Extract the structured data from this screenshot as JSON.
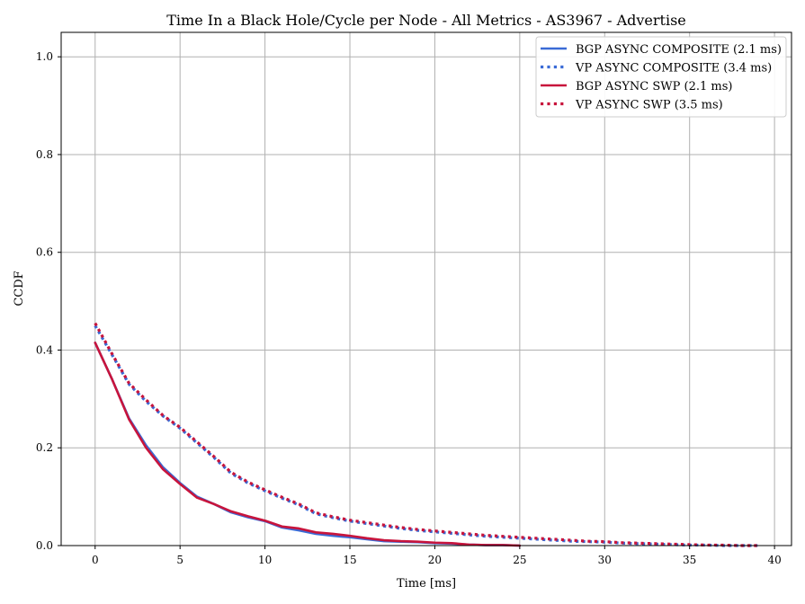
{
  "chart_data": {
    "type": "line",
    "title": "Time In a Black Hole/Cycle per Node - All Metrics - AS3967 - Advertise",
    "xlabel": "Time [ms]",
    "ylabel": "CCDF",
    "xlim": [
      -2,
      41
    ],
    "ylim": [
      0,
      1.05
    ],
    "xticks": [
      0,
      5,
      10,
      15,
      20,
      25,
      30,
      35,
      40
    ],
    "yticks": [
      0.0,
      0.2,
      0.4,
      0.6,
      0.8,
      1.0
    ],
    "xtick_labels": [
      "0",
      "5",
      "10",
      "15",
      "20",
      "25",
      "30",
      "35",
      "40"
    ],
    "ytick_labels": [
      "0.0",
      "0.2",
      "0.4",
      "0.6",
      "0.8",
      "1.0"
    ],
    "grid": true,
    "legend_position": "top-right",
    "series": [
      {
        "name": "BGP ASYNC COMPOSITE (2.1 ms)",
        "color": "#3a6bd6",
        "style": "solid",
        "x": [
          0,
          1,
          2,
          3,
          4,
          5,
          6,
          7,
          8,
          9,
          10,
          11,
          12,
          13,
          14,
          15,
          16,
          17,
          18,
          19,
          20,
          21,
          22,
          23,
          24,
          25
        ],
        "y": [
          0.415,
          0.34,
          0.26,
          0.205,
          0.16,
          0.128,
          0.1,
          0.085,
          0.068,
          0.058,
          0.05,
          0.037,
          0.031,
          0.024,
          0.02,
          0.017,
          0.013,
          0.009,
          0.008,
          0.007,
          0.005,
          0.004,
          0.002,
          0.001,
          0.001,
          0.0
        ]
      },
      {
        "name": "VP ASYNC COMPOSITE (3.4 ms)",
        "color": "#3a6bd6",
        "style": "dotted",
        "x": [
          0,
          1,
          2,
          3,
          4,
          5,
          6,
          7,
          8,
          9,
          10,
          11,
          12,
          13,
          14,
          15,
          16,
          17,
          18,
          19,
          20,
          21,
          22,
          23,
          24,
          25,
          26,
          27,
          28,
          29,
          30,
          31,
          32,
          33,
          34,
          35,
          36,
          37,
          38,
          39
        ],
        "y": [
          0.45,
          0.39,
          0.33,
          0.295,
          0.265,
          0.24,
          0.21,
          0.18,
          0.148,
          0.128,
          0.112,
          0.097,
          0.083,
          0.065,
          0.057,
          0.05,
          0.045,
          0.04,
          0.035,
          0.031,
          0.028,
          0.025,
          0.022,
          0.019,
          0.017,
          0.015,
          0.013,
          0.011,
          0.009,
          0.008,
          0.007,
          0.005,
          0.004,
          0.003,
          0.002,
          0.001,
          0.001,
          0.0,
          0.0,
          0.0
        ]
      },
      {
        "name": "BGP ASYNC SWP (2.1 ms)",
        "color": "#c8143c",
        "style": "solid",
        "x": [
          0,
          1,
          2,
          3,
          4,
          5,
          6,
          7,
          8,
          9,
          10,
          11,
          12,
          13,
          14,
          15,
          16,
          17,
          18,
          19,
          20,
          21,
          22,
          23,
          24,
          25
        ],
        "y": [
          0.415,
          0.34,
          0.258,
          0.2,
          0.156,
          0.126,
          0.098,
          0.085,
          0.07,
          0.06,
          0.051,
          0.039,
          0.035,
          0.027,
          0.024,
          0.02,
          0.015,
          0.011,
          0.009,
          0.008,
          0.006,
          0.005,
          0.002,
          0.001,
          0.001,
          0.0
        ]
      },
      {
        "name": "VP ASYNC SWP (3.5 ms)",
        "color": "#c8143c",
        "style": "dotted",
        "x": [
          0,
          1,
          2,
          3,
          4,
          5,
          6,
          7,
          8,
          9,
          10,
          11,
          12,
          13,
          14,
          15,
          16,
          17,
          18,
          19,
          20,
          21,
          22,
          23,
          24,
          25,
          26,
          27,
          28,
          29,
          30,
          31,
          32,
          33,
          34,
          35,
          36,
          37,
          38,
          39
        ],
        "y": [
          0.455,
          0.392,
          0.332,
          0.298,
          0.266,
          0.242,
          0.212,
          0.182,
          0.15,
          0.13,
          0.114,
          0.099,
          0.085,
          0.067,
          0.059,
          0.052,
          0.047,
          0.042,
          0.037,
          0.033,
          0.03,
          0.027,
          0.024,
          0.021,
          0.019,
          0.017,
          0.015,
          0.013,
          0.011,
          0.009,
          0.008,
          0.006,
          0.005,
          0.004,
          0.003,
          0.002,
          0.001,
          0.001,
          0.0,
          0.0
        ]
      }
    ]
  }
}
